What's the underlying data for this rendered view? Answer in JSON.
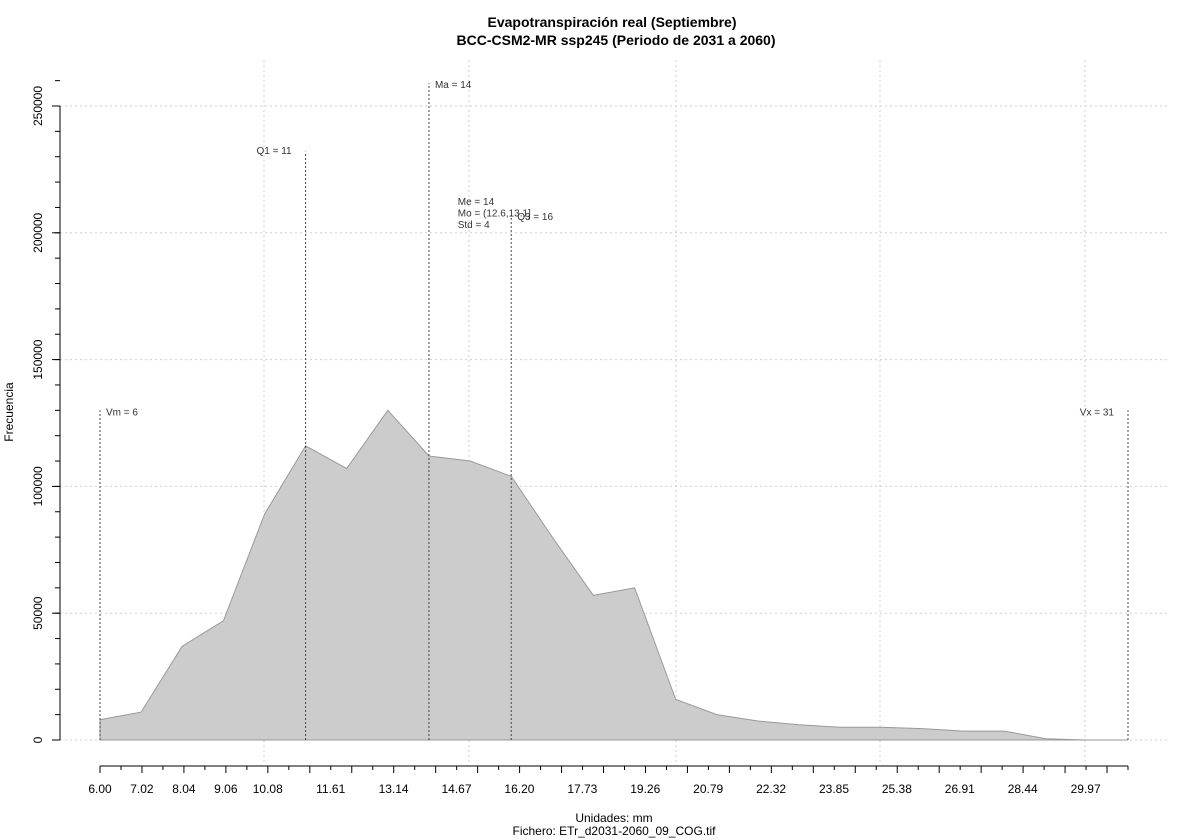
{
  "chart_data": {
    "type": "area",
    "title": "Evapotranspiración real (Septiembre)",
    "subtitle": "BCC-CSM2-MR ssp245 (Periodo de 2031 a 2060)",
    "xlabel": "Unidades: mm",
    "caption": "Fichero: ETr_d2031-2060_09_COG.tif",
    "ylabel": "Frecuencia",
    "xlim": [
      6,
      31
    ],
    "ylim": [
      0,
      260000
    ],
    "grid": true,
    "x_tick_labels": [
      "6.00",
      "7.02",
      "8.04",
      "9.06",
      "10.08",
      "11.61",
      "13.14",
      "14.67",
      "16.20",
      "17.73",
      "19.26",
      "20.79",
      "22.32",
      "23.85",
      "25.38",
      "26.91",
      "28.44",
      "29.97"
    ],
    "y_tick_labels": [
      "0",
      "50000",
      "100000",
      "150000",
      "200000",
      "250000"
    ],
    "x": [
      6,
      7,
      8,
      9,
      10,
      11,
      12,
      13,
      14,
      15,
      16,
      17,
      18,
      19,
      20,
      21,
      22,
      23,
      24,
      25,
      26,
      27,
      28,
      29,
      30,
      31
    ],
    "values": [
      8000,
      11000,
      37000,
      47000,
      89000,
      116000,
      107000,
      130000,
      112000,
      110000,
      104000,
      80000,
      57000,
      60000,
      16000,
      10000,
      7500,
      6000,
      5000,
      5000,
      4500,
      3500,
      3500,
      500,
      0,
      0
    ],
    "annotations": [
      {
        "label": "Vm = 6",
        "x": 6,
        "line_top": 130000,
        "text_y": 128000,
        "anchor": "start"
      },
      {
        "label": "Q1 = 11",
        "x": 11,
        "line_top": 232000,
        "text_y": 231000,
        "anchor": "end"
      },
      {
        "label": "Ma = 14",
        "x": 14,
        "line_top": 259000,
        "text_y": 257000,
        "anchor": "start"
      },
      {
        "label": "Q3 = 16",
        "x": 16,
        "line_top": 207000,
        "text_y": 205000,
        "anchor": "start"
      },
      {
        "label": "Vx = 31",
        "x": 31,
        "line_top": 130000,
        "text_y": 128000,
        "anchor": "end"
      }
    ],
    "stats": {
      "lines": [
        "Me = 14",
        "Mo = (12.6,13.1]",
        "Std = 4"
      ],
      "x": 14.7,
      "y": 211000
    }
  }
}
